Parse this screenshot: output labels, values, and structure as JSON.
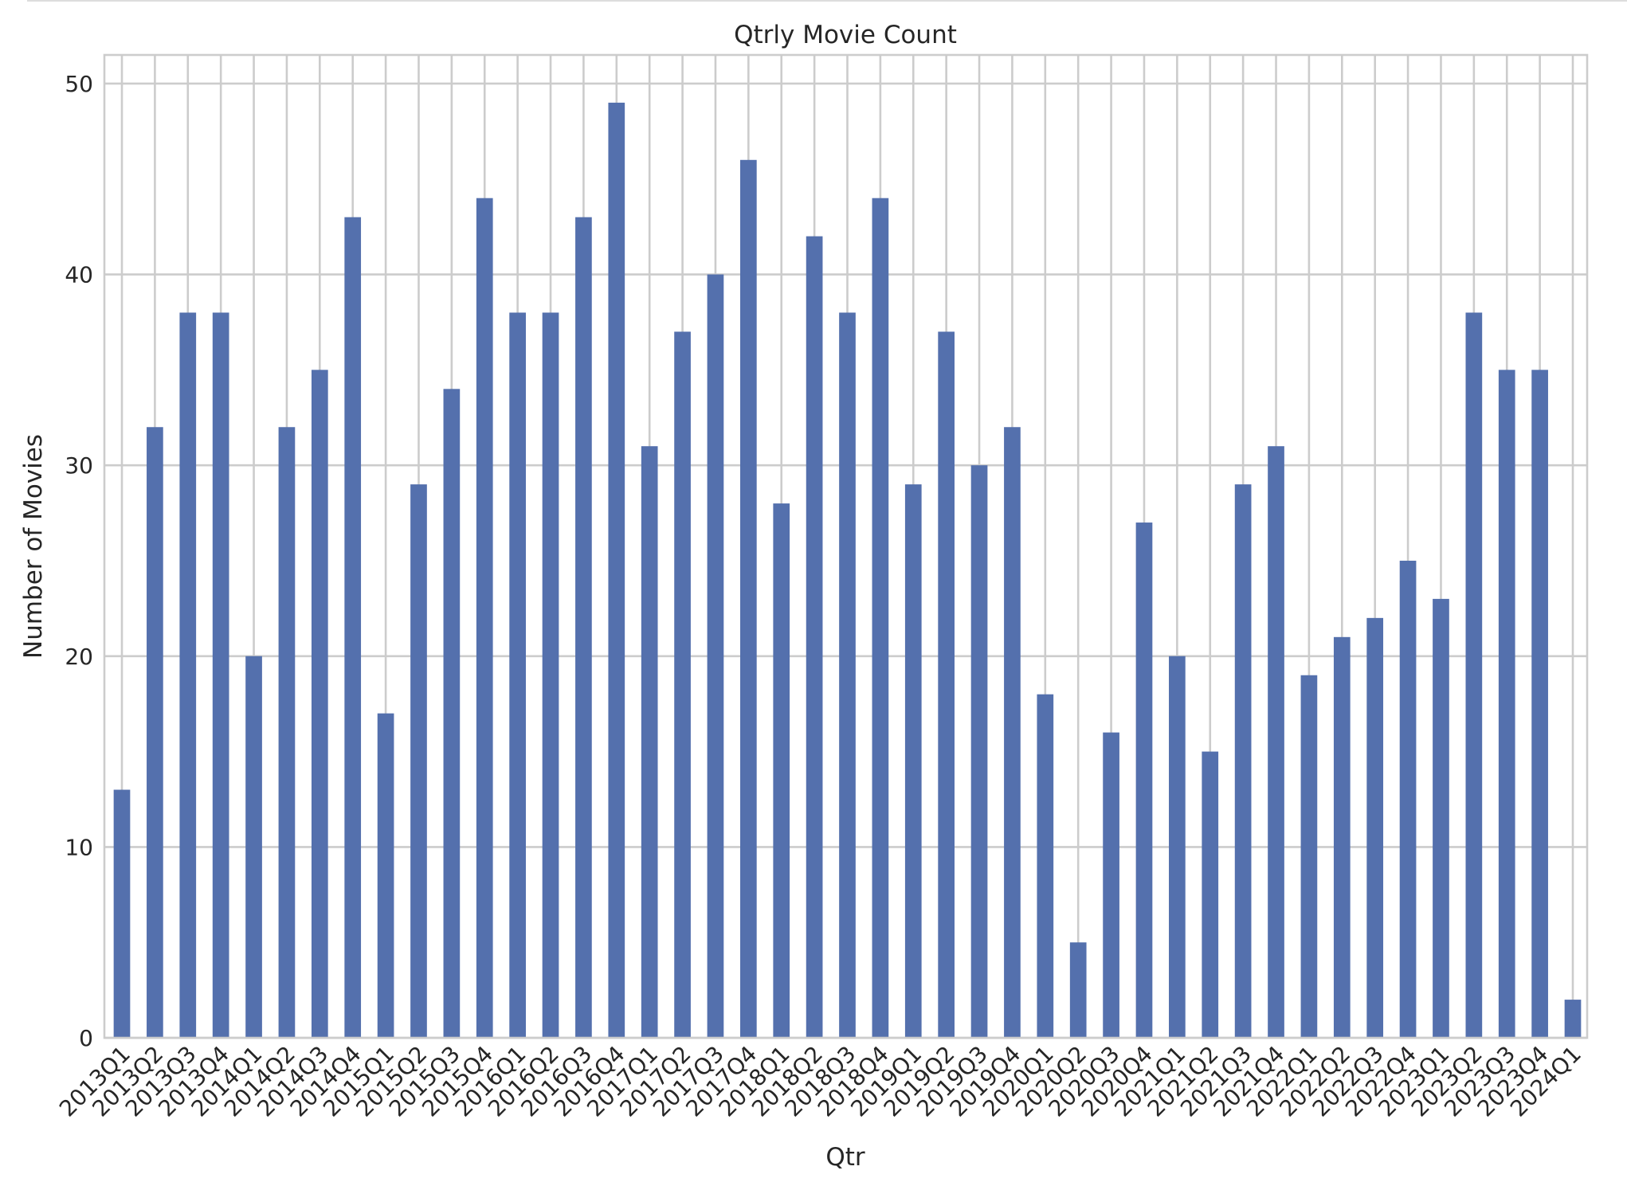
{
  "chart_data": {
    "type": "bar",
    "title": "Qtrly Movie Count",
    "xlabel": "Qtr",
    "ylabel": "Number of Movies",
    "ylim": [
      0,
      51.5
    ],
    "yticks": [
      0,
      10,
      20,
      30,
      40,
      50
    ],
    "grid": true,
    "legend": "none",
    "colors": {
      "bar": "#5470ad",
      "grid": "#cccccc",
      "text": "#262626"
    },
    "categories": [
      "2013Q1",
      "2013Q2",
      "2013Q3",
      "2013Q4",
      "2014Q1",
      "2014Q2",
      "2014Q3",
      "2014Q4",
      "2015Q1",
      "2015Q2",
      "2015Q3",
      "2015Q4",
      "2016Q1",
      "2016Q2",
      "2016Q3",
      "2016Q4",
      "2017Q1",
      "2017Q2",
      "2017Q3",
      "2017Q4",
      "2018Q1",
      "2018Q2",
      "2018Q3",
      "2018Q4",
      "2019Q1",
      "2019Q2",
      "2019Q3",
      "2019Q4",
      "2020Q1",
      "2020Q2",
      "2020Q3",
      "2020Q4",
      "2021Q1",
      "2021Q2",
      "2021Q3",
      "2021Q4",
      "2022Q1",
      "2022Q2",
      "2022Q3",
      "2022Q4",
      "2023Q1",
      "2023Q2",
      "2023Q3",
      "2023Q4",
      "2024Q1"
    ],
    "values": [
      13,
      32,
      38,
      38,
      20,
      32,
      35,
      43,
      17,
      29,
      34,
      44,
      38,
      38,
      43,
      49,
      31,
      37,
      40,
      46,
      28,
      42,
      38,
      44,
      29,
      37,
      30,
      32,
      18,
      5,
      16,
      27,
      20,
      15,
      29,
      31,
      19,
      21,
      22,
      25,
      23,
      38,
      35,
      35,
      2
    ]
  }
}
